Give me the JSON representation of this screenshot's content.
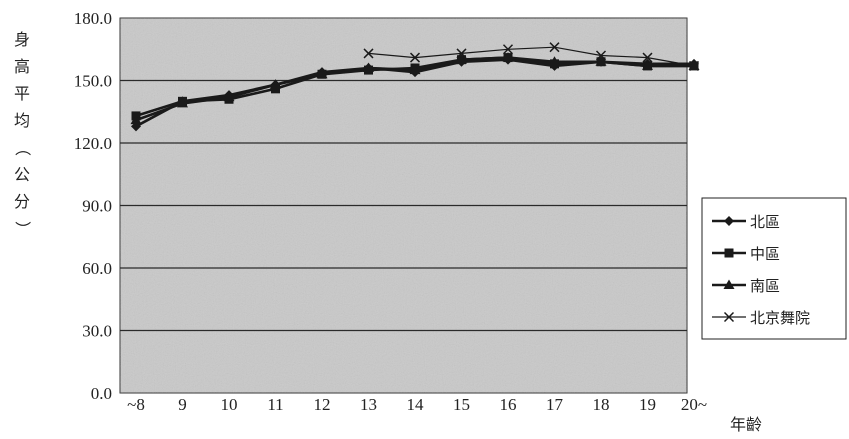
{
  "chart_data": {
    "type": "line",
    "title": "",
    "ylabel": "身高平均（公分）",
    "xlabel": "年齡",
    "categories": [
      "~8",
      "9",
      "10",
      "11",
      "12",
      "13",
      "14",
      "15",
      "16",
      "17",
      "18",
      "19",
      "20~"
    ],
    "ylim": [
      0,
      180
    ],
    "yticks": [
      "0.0",
      "30.0",
      "60.0",
      "90.0",
      "120.0",
      "150.0",
      "180.0"
    ],
    "grid": true,
    "legend_position": "right",
    "series": [
      {
        "name": "北區",
        "marker": "diamond",
        "values": [
          128,
          140,
          143,
          148,
          154,
          156,
          154,
          159,
          160,
          157,
          159,
          158,
          158
        ]
      },
      {
        "name": "中區",
        "marker": "square",
        "values": [
          133,
          140,
          141,
          146,
          153,
          155,
          156,
          160,
          161,
          158,
          159,
          157,
          157
        ]
      },
      {
        "name": "南區",
        "marker": "triangle",
        "values": [
          131,
          139,
          142,
          148,
          153,
          156,
          155,
          160,
          161,
          159,
          159,
          157,
          157
        ]
      },
      {
        "name": "北京舞院",
        "marker": "x",
        "values": [
          null,
          null,
          null,
          null,
          null,
          163,
          161,
          163,
          165,
          166,
          162,
          161,
          157
        ]
      }
    ],
    "colors": {
      "line": "#1a1a1a",
      "plot_bg": "#c9c9c9",
      "grid": "#2a2a2a"
    }
  }
}
